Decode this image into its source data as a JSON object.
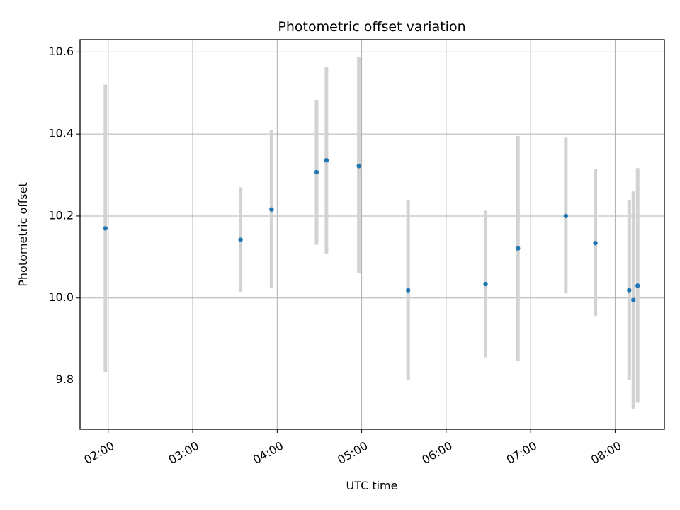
{
  "chart_data": {
    "type": "scatter",
    "title": "Photometric offset variation",
    "xlabel": "UTC time",
    "ylabel": "Photometric offset",
    "x_tick_labels": [
      "02:00",
      "03:00",
      "04:00",
      "05:00",
      "06:00",
      "07:00",
      "08:00"
    ],
    "x_tick_values": [
      "02:00",
      "03:00",
      "04:00",
      "05:00",
      "06:00",
      "07:00",
      "08:00"
    ],
    "y_tick_labels": [
      "9.8",
      "10.0",
      "10.2",
      "10.4",
      "10.6"
    ],
    "y_tick_values": [
      9.8,
      10.0,
      10.2,
      10.4,
      10.6
    ],
    "xlim": [
      "01:40",
      "08:35"
    ],
    "ylim": [
      9.68,
      10.63
    ],
    "grid": true,
    "point_color": "#1f77b4",
    "errorbar_color": "#d3d3d3",
    "points": [
      {
        "x": "01:58",
        "y": 10.17,
        "lower": 9.82,
        "upper": 10.52
      },
      {
        "x": "03:34",
        "y": 10.142,
        "lower": 10.015,
        "upper": 10.27
      },
      {
        "x": "03:56",
        "y": 10.216,
        "lower": 10.025,
        "upper": 10.41
      },
      {
        "x": "04:28",
        "y": 10.307,
        "lower": 10.13,
        "upper": 10.483
      },
      {
        "x": "04:35",
        "y": 10.336,
        "lower": 10.107,
        "upper": 10.563
      },
      {
        "x": "04:58",
        "y": 10.322,
        "lower": 10.06,
        "upper": 10.588
      },
      {
        "x": "05:33",
        "y": 10.019,
        "lower": 9.8,
        "upper": 10.238
      },
      {
        "x": "06:28",
        "y": 10.034,
        "lower": 9.855,
        "upper": 10.213
      },
      {
        "x": "06:51",
        "y": 10.121,
        "lower": 9.847,
        "upper": 10.395
      },
      {
        "x": "07:25",
        "y": 10.2,
        "lower": 10.011,
        "upper": 10.391
      },
      {
        "x": "07:46",
        "y": 10.134,
        "lower": 9.956,
        "upper": 10.314
      },
      {
        "x": "08:10",
        "y": 10.019,
        "lower": 9.8,
        "upper": 10.238
      },
      {
        "x": "08:13",
        "y": 9.995,
        "lower": 9.73,
        "upper": 10.26
      },
      {
        "x": "08:16",
        "y": 10.03,
        "lower": 9.745,
        "upper": 10.317
      }
    ]
  }
}
